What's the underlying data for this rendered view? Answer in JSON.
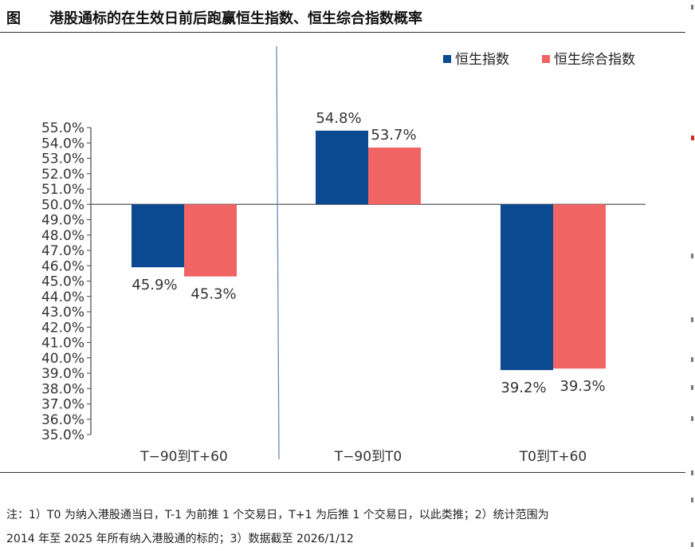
{
  "figure": {
    "label": "图",
    "title": "港股通标的在生效日前后跑赢恒生指数、恒生综合指数概率"
  },
  "chart_data": {
    "type": "bar",
    "baseline": 50.0,
    "ylim": [
      35.0,
      55.0
    ],
    "yticks": [
      "55.0%",
      "54.0%",
      "53.0%",
      "52.0%",
      "51.0%",
      "50.0%",
      "49.0%",
      "48.0%",
      "47.0%",
      "46.0%",
      "45.0%",
      "44.0%",
      "43.0%",
      "42.0%",
      "41.0%",
      "40.0%",
      "39.0%",
      "38.0%",
      "37.0%",
      "36.0%",
      "35.0%"
    ],
    "categories": [
      "T−90到T+60",
      "T−90到T0",
      "T0到T+60"
    ],
    "series": [
      {
        "name": "恒生指数",
        "color": "#0b4a91",
        "values": [
          45.9,
          54.8,
          39.2
        ],
        "labels": [
          "45.9%",
          "54.8%",
          "39.2%"
        ]
      },
      {
        "name": "恒生综合指数",
        "color": "#f06464",
        "values": [
          45.3,
          53.7,
          39.3
        ],
        "labels": [
          "45.3%",
          "53.7%",
          "39.3%"
        ]
      }
    ],
    "legend_position": "top-right",
    "grid": false
  },
  "notes": {
    "line1": "注：1）T0 为纳入港股通当日，T-1 为前推 1 个交易日，T+1 为后推 1 个交易日，以此类推；2）统计范围为",
    "line2": "2014 年至 2025 年所有纳入港股通的标的；3）数据截至 2026/1/12"
  }
}
